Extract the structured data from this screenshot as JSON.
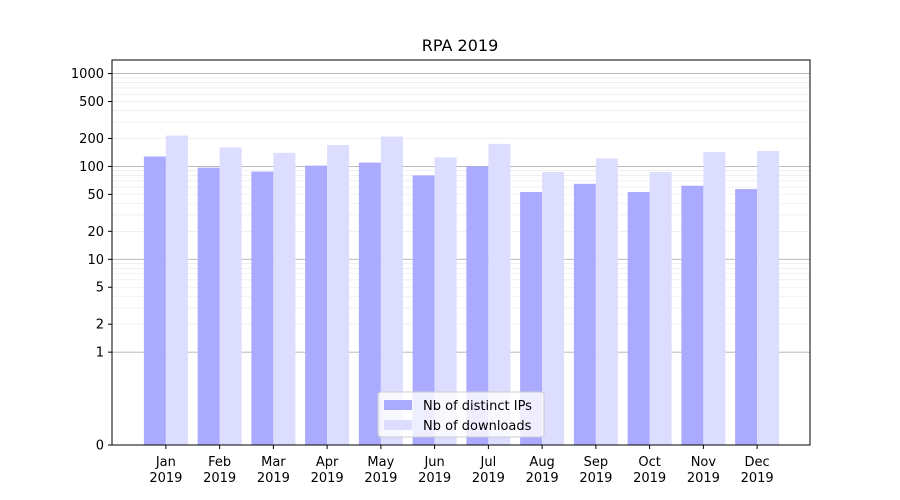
{
  "chart_data": {
    "type": "bar",
    "title": "RPA 2019",
    "xlabel": "",
    "ylabel": "",
    "y_scale": "symlog",
    "ylim": [
      0,
      1400
    ],
    "grid": "horizontal",
    "legend_position": "bottom-center",
    "categories": [
      {
        "month": "Jan",
        "year": "2019"
      },
      {
        "month": "Feb",
        "year": "2019"
      },
      {
        "month": "Mar",
        "year": "2019"
      },
      {
        "month": "Apr",
        "year": "2019"
      },
      {
        "month": "May",
        "year": "2019"
      },
      {
        "month": "Jun",
        "year": "2019"
      },
      {
        "month": "Jul",
        "year": "2019"
      },
      {
        "month": "Aug",
        "year": "2019"
      },
      {
        "month": "Sep",
        "year": "2019"
      },
      {
        "month": "Oct",
        "year": "2019"
      },
      {
        "month": "Nov",
        "year": "2019"
      },
      {
        "month": "Dec",
        "year": "2019"
      }
    ],
    "y_ticks": [
      0,
      1,
      2,
      5,
      10,
      20,
      50,
      100,
      200,
      500,
      1000
    ],
    "series": [
      {
        "name": "Nb of distinct IPs",
        "color": "#aaaaff",
        "values": [
          128,
          97,
          88,
          102,
          110,
          80,
          100,
          53,
          65,
          53,
          62,
          57
        ]
      },
      {
        "name": "Nb of downloads",
        "color": "#ddddff",
        "values": [
          215,
          160,
          140,
          170,
          210,
          125,
          175,
          87,
          122,
          87,
          143,
          147
        ]
      }
    ]
  }
}
